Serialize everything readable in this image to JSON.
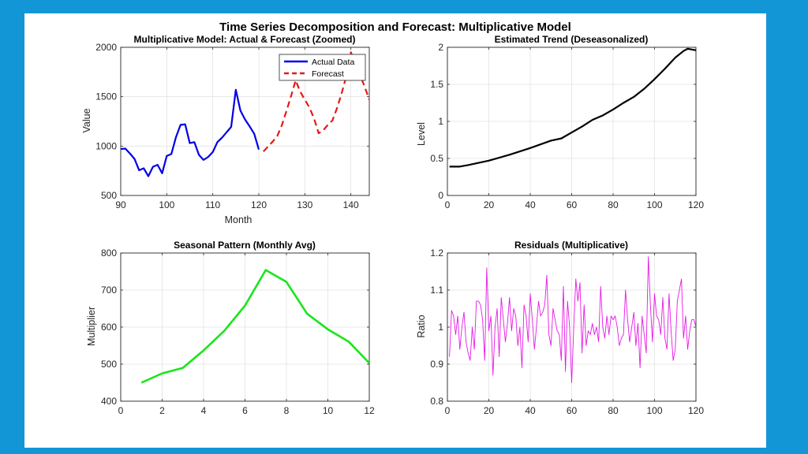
{
  "figure_title": "Time Series Decomposition and Forecast: Multiplicative Model",
  "colors": {
    "page_border": "#1296d6",
    "actual": "#0000e6",
    "forecast": "#e61919",
    "trend": "#000000",
    "seasonal": "#19e619",
    "residual": "#e619e6",
    "grid": "#e3e3e3",
    "axis": "#262626"
  },
  "chart_data": [
    {
      "id": "actual_forecast",
      "type": "line",
      "title": "Multiplicative Model: Actual & Forecast (Zoomed)",
      "xlabel": "Month",
      "ylabel": "Value",
      "xlim": [
        90,
        144
      ],
      "ylim": [
        500,
        2000
      ],
      "xticks": [
        90,
        100,
        110,
        120,
        130,
        140
      ],
      "yticks": [
        500,
        1000,
        1500,
        2000
      ],
      "grid": true,
      "legend": {
        "position": "top-right",
        "entries": [
          "Actual Data",
          "Forecast"
        ]
      },
      "series": [
        {
          "name": "Actual Data",
          "style": "solid",
          "color": "#0000e6",
          "x": [
            90,
            91,
            92,
            93,
            94,
            95,
            96,
            97,
            98,
            99,
            100,
            101,
            102,
            103,
            104,
            105,
            106,
            107,
            108,
            109,
            110,
            111,
            112,
            113,
            114,
            115,
            116,
            117,
            118,
            119,
            120
          ],
          "y": [
            970,
            975,
            925,
            870,
            755,
            775,
            695,
            790,
            810,
            725,
            900,
            920,
            1090,
            1215,
            1220,
            1030,
            1040,
            910,
            860,
            890,
            940,
            1040,
            1085,
            1140,
            1195,
            1570,
            1360,
            1270,
            1200,
            1125,
            965
          ]
        },
        {
          "name": "Forecast",
          "style": "dashed",
          "color": "#e61919",
          "x": [
            121,
            122,
            123,
            124,
            125,
            126,
            127,
            128,
            129,
            130,
            131,
            132,
            133,
            134,
            135,
            136,
            137,
            138,
            139,
            140,
            141,
            142,
            143,
            144
          ],
          "y": [
            945,
            995,
            1045,
            1100,
            1210,
            1355,
            1505,
            1665,
            1550,
            1470,
            1390,
            1280,
            1130,
            1160,
            1215,
            1260,
            1385,
            1535,
            1705,
            1950,
            1830,
            1720,
            1600,
            1470
          ]
        }
      ]
    },
    {
      "id": "trend",
      "type": "line",
      "title": "Estimated Trend (Deseasonalized)",
      "xlabel": "",
      "ylabel": "Level",
      "xlim": [
        0,
        120
      ],
      "ylim": [
        0,
        2
      ],
      "xticks": [
        0,
        20,
        40,
        60,
        80,
        100,
        120
      ],
      "yticks": [
        0,
        0.5,
        1,
        1.5,
        2
      ],
      "grid": true,
      "series": [
        {
          "name": "Trend",
          "color": "#000000",
          "x": [
            1,
            6,
            10,
            20,
            30,
            40,
            50,
            55,
            60,
            65,
            70,
            75,
            80,
            85,
            90,
            95,
            100,
            105,
            110,
            114,
            116,
            118,
            120
          ],
          "y": [
            0.39,
            0.39,
            0.41,
            0.47,
            0.55,
            0.64,
            0.74,
            0.77,
            0.85,
            0.93,
            1.02,
            1.08,
            1.16,
            1.25,
            1.33,
            1.44,
            1.57,
            1.71,
            1.86,
            1.95,
            1.98,
            1.97,
            1.96
          ]
        }
      ]
    },
    {
      "id": "seasonal",
      "type": "line",
      "title": "Seasonal Pattern (Monthly Avg)",
      "xlabel": "",
      "ylabel": "Multiplier",
      "xlim": [
        0,
        12
      ],
      "ylim": [
        400,
        800
      ],
      "xticks": [
        0,
        2,
        4,
        6,
        8,
        10,
        12
      ],
      "yticks": [
        400,
        500,
        600,
        700,
        800
      ],
      "grid": true,
      "series": [
        {
          "name": "Seasonal",
          "color": "#19e619",
          "x": [
            1,
            2,
            3,
            4,
            5,
            6,
            7,
            8,
            9,
            10,
            11,
            12
          ],
          "y": [
            450,
            475,
            490,
            537,
            590,
            658,
            754,
            722,
            636,
            594,
            561,
            503
          ]
        }
      ]
    },
    {
      "id": "residuals",
      "type": "line",
      "title": "Residuals (Multiplicative)",
      "xlabel": "",
      "ylabel": "Ratio",
      "xlim": [
        0,
        120
      ],
      "ylim": [
        0.8,
        1.2
      ],
      "xticks": [
        0,
        20,
        40,
        60,
        80,
        100,
        120
      ],
      "yticks": [
        0.8,
        0.9,
        1,
        1.1,
        1.2
      ],
      "grid": true,
      "series": [
        {
          "name": "Residuals",
          "color": "#e619e6",
          "x": [
            1,
            2,
            3,
            4,
            5,
            6,
            7,
            8,
            9,
            10,
            11,
            12,
            13,
            14,
            15,
            16,
            17,
            18,
            19,
            20,
            21,
            22,
            23,
            24,
            25,
            26,
            27,
            28,
            29,
            30,
            31,
            32,
            33,
            34,
            35,
            36,
            37,
            38,
            39,
            40,
            41,
            42,
            43,
            44,
            45,
            46,
            47,
            48,
            49,
            50,
            51,
            52,
            53,
            54,
            55,
            56,
            57,
            58,
            59,
            60,
            61,
            62,
            63,
            64,
            65,
            66,
            67,
            68,
            69,
            70,
            71,
            72,
            73,
            74,
            75,
            76,
            77,
            78,
            79,
            80,
            81,
            82,
            83,
            84,
            85,
            86,
            87,
            88,
            89,
            90,
            91,
            92,
            93,
            94,
            95,
            96,
            97,
            98,
            99,
            100,
            101,
            102,
            103,
            104,
            105,
            106,
            107,
            108,
            109,
            110,
            111,
            112,
            113,
            114,
            115,
            116,
            117,
            118,
            119,
            120
          ],
          "y": [
            0.92,
            1.045,
            1.03,
            0.98,
            1.03,
            0.94,
            1.0,
            1.04,
            0.96,
            0.93,
            0.91,
            1.0,
            0.94,
            1.07,
            1.07,
            1.06,
            1.02,
            0.91,
            1.16,
            0.99,
            1.03,
            0.87,
            1.0,
            1.05,
            0.92,
            1.08,
            1.02,
            0.96,
            1.01,
            1.08,
            0.99,
            1.05,
            1.03,
            0.95,
            1.0,
            0.89,
            1.06,
            1.03,
            0.96,
            1.09,
            1.02,
            0.94,
            1.0,
            1.07,
            1.03,
            1.04,
            1.06,
            1.14,
            0.98,
            0.95,
            1.05,
            1.02,
            0.99,
            0.98,
            0.91,
            1.11,
            0.88,
            1.07,
            1.0,
            0.85,
            1.0,
            1.13,
            1.07,
            1.12,
            0.93,
            1.06,
            0.95,
            0.99,
            0.98,
            1.01,
            0.98,
            1.0,
            0.96,
            1.11,
            1.0,
            0.97,
            1.03,
            0.98,
            1.03,
            1.02,
            1.03,
            1.0,
            0.95,
            0.97,
            0.98,
            1.1,
            1.02,
            0.96,
            1.0,
            1.04,
            0.95,
            1.01,
            0.89,
            1.03,
            0.98,
            0.93,
            1.19,
            1.06,
            0.96,
            1.09,
            1.03,
            1.02,
            0.98,
            1.08,
            0.97,
            0.94,
            1.09,
            0.99,
            0.91,
            0.94,
            1.07,
            1.1,
            1.13,
            0.97,
            1.03,
            0.94,
            0.99,
            1.02,
            1.02,
            1.0
          ]
        }
      ]
    }
  ]
}
